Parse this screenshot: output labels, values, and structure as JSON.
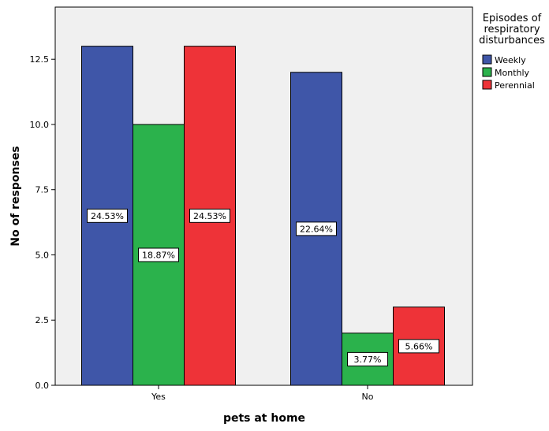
{
  "chart_data": {
    "type": "bar",
    "categories": [
      "Yes",
      "No"
    ],
    "series": [
      {
        "name": "Weekly",
        "color": "#3F56A8",
        "values": [
          13,
          12
        ],
        "labels": [
          "24.53%",
          "22.64%"
        ]
      },
      {
        "name": "Monthly",
        "color": "#2BB24C",
        "values": [
          10,
          2
        ],
        "labels": [
          "18.87%",
          "3.77%"
        ]
      },
      {
        "name": "Perennial",
        "color": "#EE3338",
        "values": [
          13,
          3
        ],
        "labels": [
          "24.53%",
          "5.66%"
        ]
      }
    ],
    "xlabel": "pets at home",
    "ylabel": "No of responses",
    "ylim": [
      0,
      14.5
    ],
    "yticks": [
      "0.0",
      "2.5",
      "5.0",
      "7.5",
      "10.0",
      "12.5"
    ],
    "ytick_values": [
      0,
      2.5,
      5,
      7.5,
      10,
      12.5
    ],
    "legend": {
      "title_lines": [
        "Episodes of",
        "respiratory",
        "disturbances"
      ],
      "placement": "top-right"
    },
    "plot_background": "#F0F0F0",
    "grid": false
  }
}
